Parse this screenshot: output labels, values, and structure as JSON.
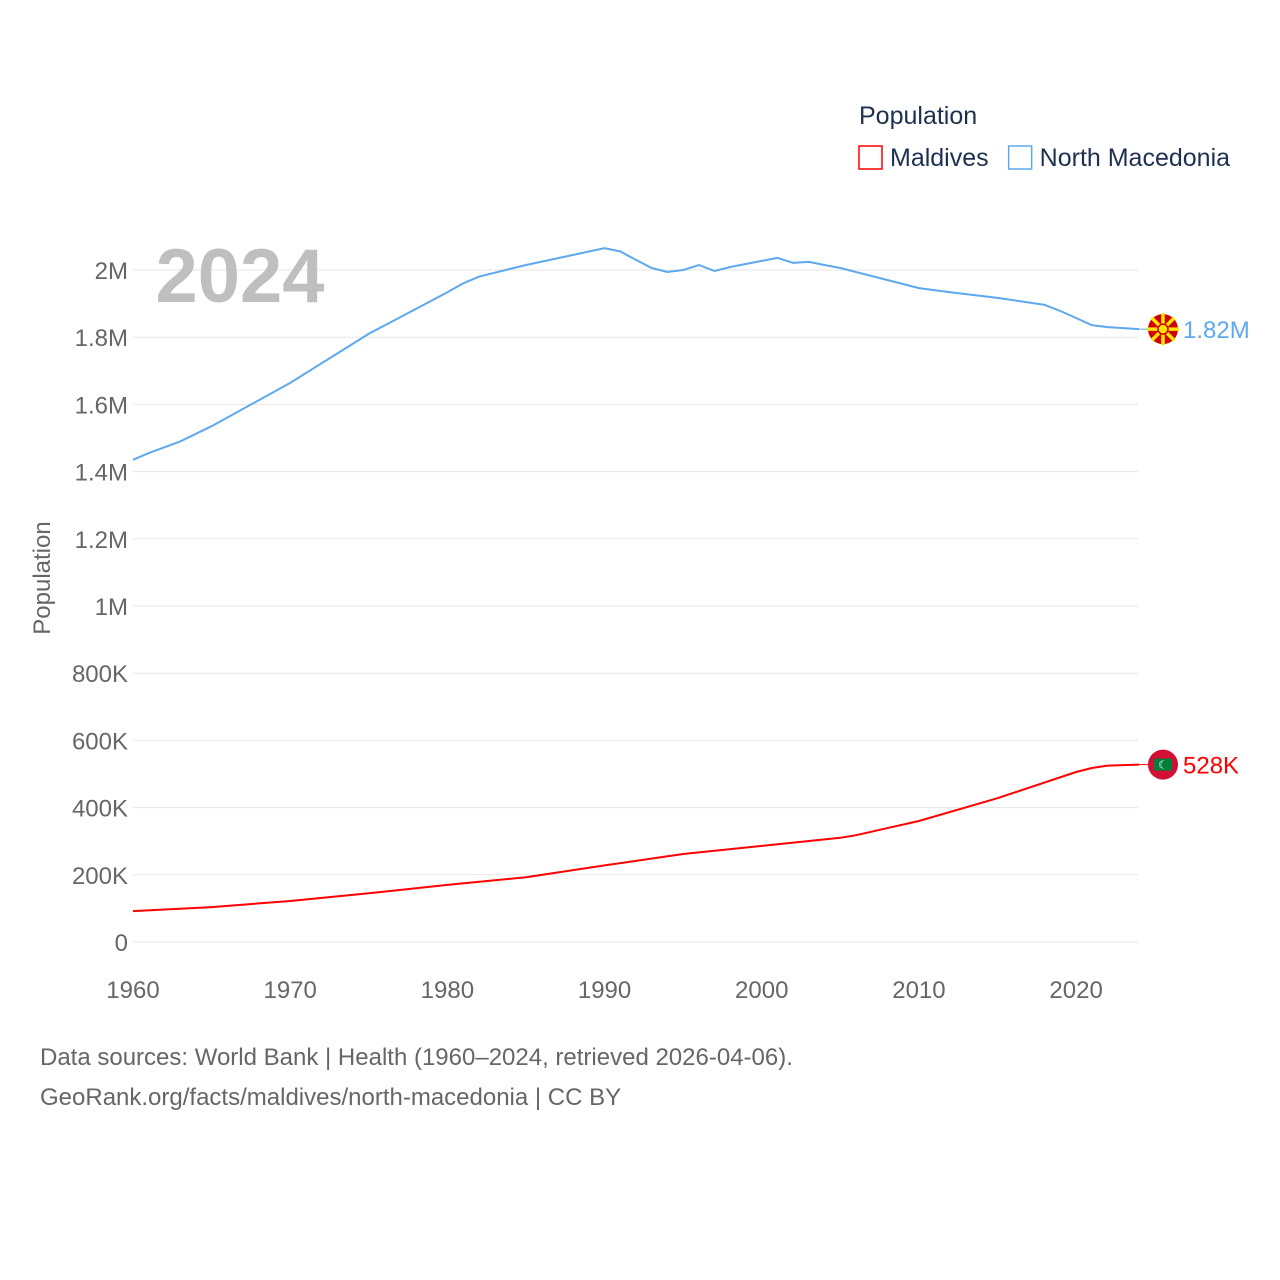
{
  "chart_data": {
    "type": "line",
    "title": "Population",
    "year_label": "2024",
    "ylabel": "Population",
    "ylim": [
      0,
      2000000
    ],
    "xlim": [
      1960,
      2024
    ],
    "x_ticks": [
      1960,
      1970,
      1980,
      1990,
      2000,
      2010,
      2020
    ],
    "y_ticks": [
      {
        "v": 0,
        "label": "0"
      },
      {
        "v": 200000,
        "label": "200K"
      },
      {
        "v": 400000,
        "label": "400K"
      },
      {
        "v": 600000,
        "label": "600K"
      },
      {
        "v": 800000,
        "label": "800K"
      },
      {
        "v": 1000000,
        "label": "1M"
      },
      {
        "v": 1200000,
        "label": "1.2M"
      },
      {
        "v": 1400000,
        "label": "1.4M"
      },
      {
        "v": 1600000,
        "label": "1.6M"
      },
      {
        "v": 1800000,
        "label": "1.8M"
      },
      {
        "v": 2000000,
        "label": "2M"
      }
    ],
    "legend": {
      "title": "Population",
      "placement": "top-right"
    },
    "series": [
      {
        "name": "Maldives",
        "color": "#ff0000",
        "end_label": "528K",
        "flag": "maldives-flag",
        "points": [
          [
            1960,
            92000
          ],
          [
            1965,
            104000
          ],
          [
            1970,
            122000
          ],
          [
            1975,
            145000
          ],
          [
            1980,
            170000
          ],
          [
            1985,
            193000
          ],
          [
            1990,
            228000
          ],
          [
            1995,
            262000
          ],
          [
            2000,
            286000
          ],
          [
            2005,
            310000
          ],
          [
            2006,
            318000
          ],
          [
            2010,
            360000
          ],
          [
            2015,
            428000
          ],
          [
            2020,
            506000
          ],
          [
            2021,
            518000
          ],
          [
            2022,
            525000
          ],
          [
            2024,
            528000
          ]
        ]
      },
      {
        "name": "North Macedonia",
        "color": "#5ea8ee",
        "end_label": "1.82M",
        "flag": "north-macedonia-flag",
        "points": [
          [
            1960,
            1435000
          ],
          [
            1961,
            1455000
          ],
          [
            1963,
            1490000
          ],
          [
            1965,
            1535000
          ],
          [
            1970,
            1664000
          ],
          [
            1975,
            1810000
          ],
          [
            1980,
            1934000
          ],
          [
            1981,
            1960000
          ],
          [
            1982,
            1980000
          ],
          [
            1985,
            2015000
          ],
          [
            1990,
            2065000
          ],
          [
            1991,
            2055000
          ],
          [
            1992,
            2030000
          ],
          [
            1993,
            2006000
          ],
          [
            1994,
            1994000
          ],
          [
            1995,
            2000000
          ],
          [
            1996,
            2015000
          ],
          [
            1997,
            1997000
          ],
          [
            1998,
            2009000
          ],
          [
            2000,
            2027000
          ],
          [
            2001,
            2036000
          ],
          [
            2002,
            2021000
          ],
          [
            2003,
            2024000
          ],
          [
            2004,
            2015000
          ],
          [
            2005,
            2006000
          ],
          [
            2010,
            1946000
          ],
          [
            2012,
            1934000
          ],
          [
            2015,
            1917000
          ],
          [
            2018,
            1896000
          ],
          [
            2019,
            1878000
          ],
          [
            2020,
            1857000
          ],
          [
            2021,
            1836000
          ],
          [
            2022,
            1830000
          ],
          [
            2024,
            1824000
          ]
        ]
      }
    ]
  },
  "footer": {
    "line1": "Data sources: World Bank | Health (1960–2024, retrieved 2026-04-06).",
    "line2": "GeoRank.org/facts/maldives/north-macedonia | CC BY"
  }
}
